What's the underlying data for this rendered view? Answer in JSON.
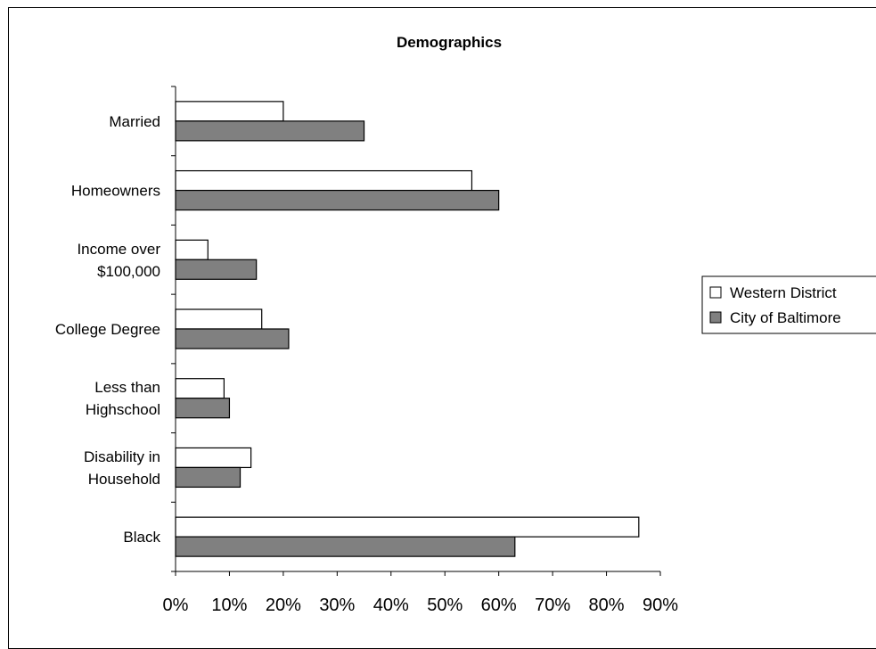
{
  "chart_data": {
    "type": "bar",
    "orientation": "horizontal",
    "title": "Demographics",
    "xlabel": "",
    "ylabel": "",
    "categories": [
      [
        "Married"
      ],
      [
        "Homeowners"
      ],
      [
        "Income over",
        "$100,000"
      ],
      [
        "College Degree"
      ],
      [
        "Less than",
        "Highschool"
      ],
      [
        "Disability in",
        "Household"
      ],
      [
        "Black"
      ]
    ],
    "series": [
      {
        "name": "Western District",
        "color": "#ffffff",
        "values": [
          20,
          55,
          6,
          16,
          9,
          14,
          86
        ]
      },
      {
        "name": "City of Baltimore",
        "color": "#808080",
        "values": [
          35,
          60,
          15,
          21,
          10,
          12,
          63
        ]
      }
    ],
    "xlim": [
      0,
      90
    ],
    "xticks": [
      0,
      10,
      20,
      30,
      40,
      50,
      60,
      70,
      80,
      90
    ],
    "xtick_labels": [
      "0%",
      "10%",
      "20%",
      "30%",
      "40%",
      "50%",
      "60%",
      "70%",
      "80%",
      "90%"
    ],
    "grid": false,
    "legend": {
      "position": "right"
    }
  }
}
